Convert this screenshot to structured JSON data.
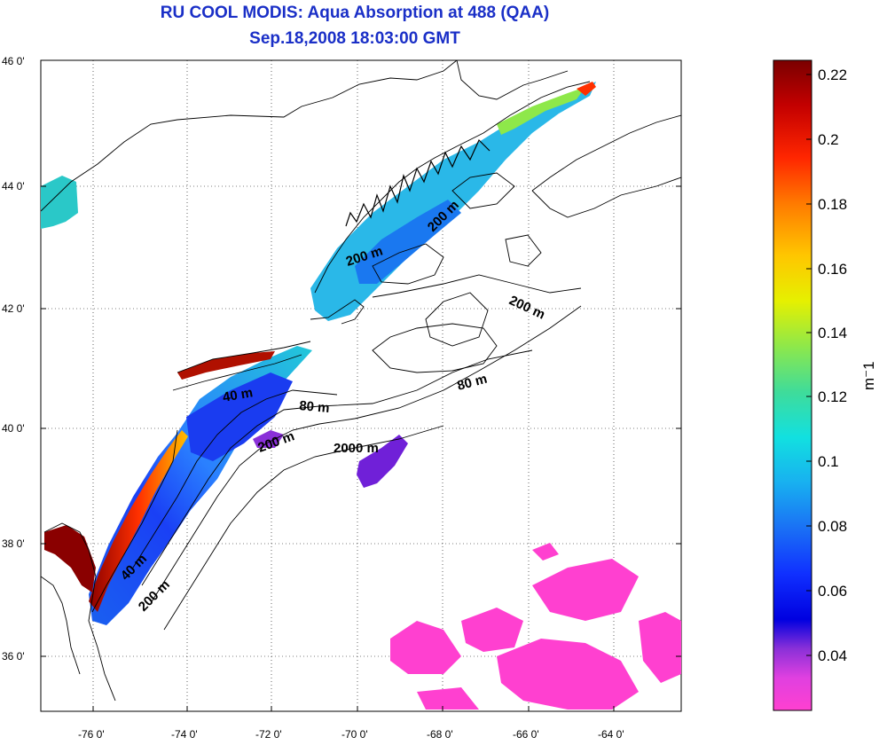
{
  "title": "RU COOL MODIS: Aqua Absorption at 488 (QAA)",
  "subtitle": "Sep.18,2008 18:03:00 GMT",
  "lat_labels": [
    "46 0'",
    "44 0'",
    "42 0'",
    "40 0'",
    "38 0'",
    "36 0'"
  ],
  "lon_labels": [
    "-76 0'",
    "-74 0'",
    "-72 0'",
    "-70 0'",
    "-68 0'",
    "-66 0'",
    "-64 0'"
  ],
  "contour_labels": [
    {
      "text": "200 m",
      "name": "contour-label-200m-gulf-maine"
    },
    {
      "text": "200 m",
      "name": "contour-label-200m-maine-ne"
    },
    {
      "text": "200 m",
      "name": "contour-label-200m-georges-bank"
    },
    {
      "text": "80 m",
      "name": "contour-label-80m-georges"
    },
    {
      "text": "40 m",
      "name": "contour-label-40m-long-island"
    },
    {
      "text": "80 m",
      "name": "contour-label-80m-new-york-bight"
    },
    {
      "text": "200 m",
      "name": "contour-label-200m-hudson-canyon"
    },
    {
      "text": "2000 m",
      "name": "contour-label-2000m"
    },
    {
      "text": "40 m",
      "name": "contour-label-40m-virginia"
    },
    {
      "text": "200 m",
      "name": "contour-label-200m-virginia"
    }
  ],
  "colorbar": {
    "ticks": [
      "0.22",
      "0.2",
      "0.18",
      "0.16",
      "0.14",
      "0.12",
      "0.1",
      "0.08",
      "0.06",
      "0.04"
    ],
    "unit": "m⁻1",
    "colors": [
      "#7a0000",
      "#c40000",
      "#ff2600",
      "#ff7a00",
      "#ffc600",
      "#e6f000",
      "#8ee84a",
      "#3fdc9a",
      "#12e0e0",
      "#18b0f0",
      "#1a70f5",
      "#1030ff",
      "#0000e0",
      "#8a30d8",
      "#e040e0",
      "#ff40d0"
    ]
  }
}
